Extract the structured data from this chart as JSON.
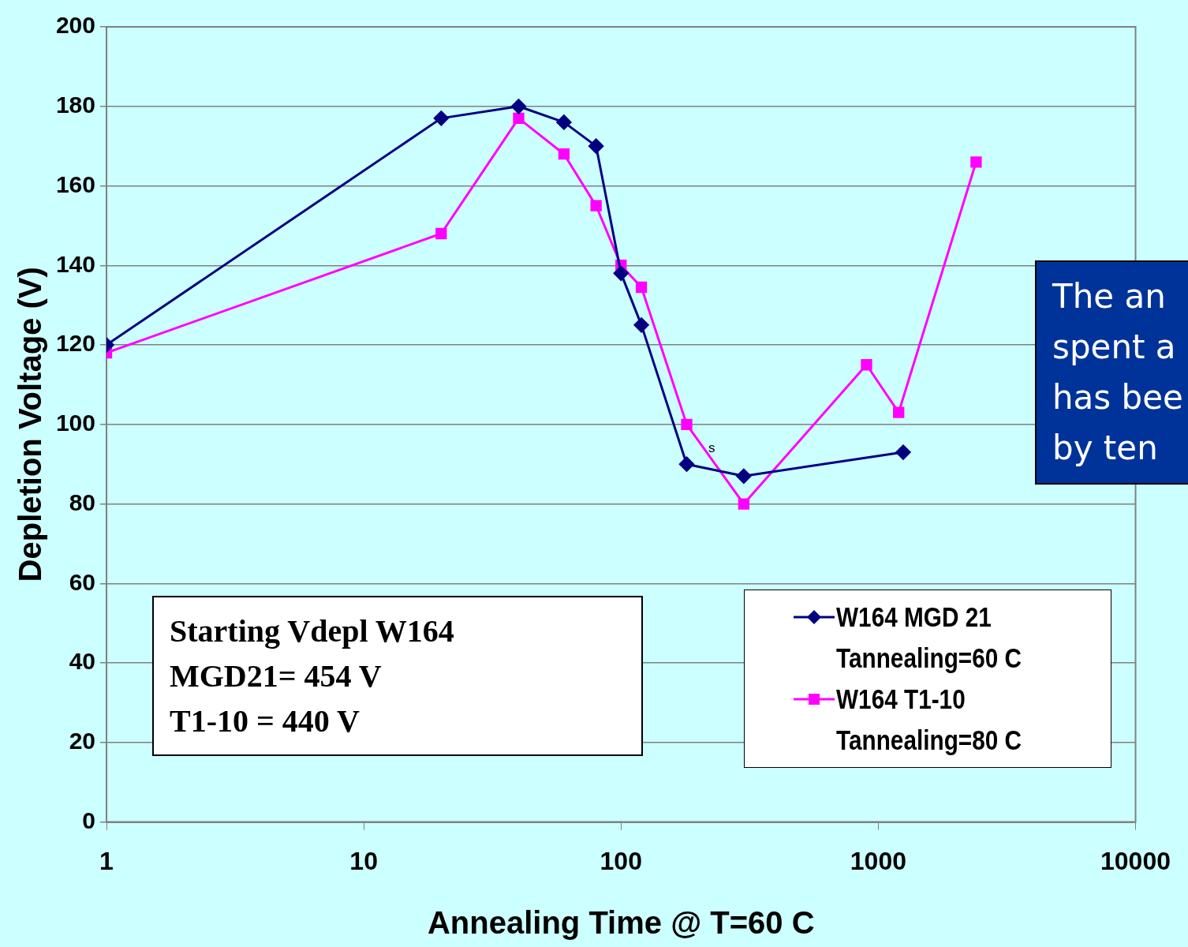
{
  "chart_data": {
    "type": "line",
    "xlabel": "Annealing Time @ T=60 C",
    "ylabel": "Depletion Voltage (V)",
    "log": "x",
    "xlim": [
      1,
      10000
    ],
    "xticks": [
      1,
      10,
      100,
      1000,
      10000
    ],
    "ylim": [
      0,
      200
    ],
    "yticks": [
      0,
      20,
      40,
      60,
      80,
      100,
      120,
      140,
      160,
      180,
      200
    ],
    "grid": "y",
    "legend": "bottom right",
    "line_style": "solid",
    "series": [
      {
        "name": "W164 MGD 21 Tannealing=60 C",
        "color": "#000080",
        "marker": "diamond",
        "x": [
          1,
          20,
          40,
          60,
          80,
          100,
          120,
          180,
          300,
          1250
        ],
        "values": [
          120,
          177,
          180,
          176,
          170,
          138,
          125,
          90,
          87,
          93
        ]
      },
      {
        "name": "W164 T1-10 Tannealing=80 C",
        "color": "#ff00ff",
        "marker": "square",
        "x": [
          1,
          20,
          40,
          60,
          80,
          100,
          120,
          180,
          300,
          900,
          1200,
          2400
        ],
        "values": [
          118,
          148,
          177,
          168,
          155,
          140,
          134.5,
          100,
          80,
          115,
          103,
          166
        ]
      }
    ],
    "annotations": [
      "Starting Vdepl W164\nMGD21= 454 V\nT1-10 = 440 V",
      "The an\nspent a\nhas bee\nby ten",
      "s"
    ]
  }
}
